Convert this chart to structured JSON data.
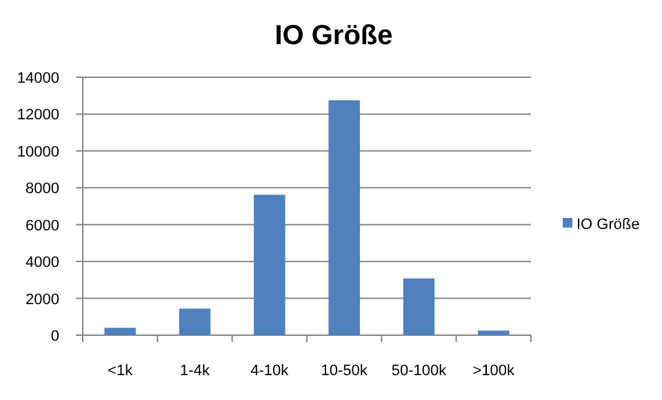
{
  "chart_data": {
    "type": "bar",
    "title": "IO Größe",
    "categories": [
      "<1k",
      "1-4k",
      "4-10k",
      "10-50k",
      "50-100k",
      ">100k"
    ],
    "series": [
      {
        "name": "IO Größe",
        "color": "#4f81bd",
        "values": [
          400,
          1440,
          7620,
          12750,
          3080,
          250
        ]
      }
    ],
    "ylim": [
      0,
      14000
    ],
    "yticks": [
      0,
      2000,
      4000,
      6000,
      8000,
      10000,
      12000,
      14000
    ],
    "grid": "y",
    "legend": "right"
  }
}
